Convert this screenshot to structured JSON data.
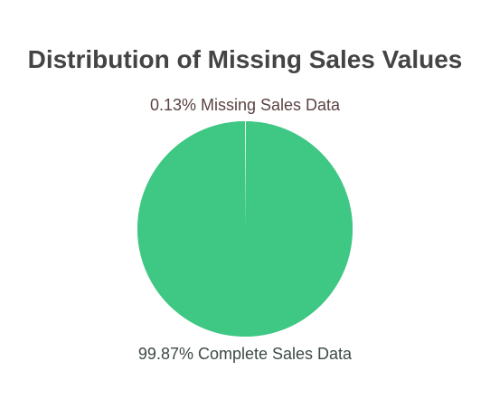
{
  "chart_data": {
    "type": "pie",
    "title": "Distribution of Missing Sales Values",
    "slices": [
      {
        "label": "0.13% Missing Sales Data",
        "percent": 0.13,
        "color": "#ffffff",
        "label_color": "#5a4342"
      },
      {
        "label": "99.87% Complete Sales Data",
        "percent": 99.87,
        "color": "#3fc784",
        "label_color": "#3d4a45"
      }
    ],
    "legend": "none"
  }
}
